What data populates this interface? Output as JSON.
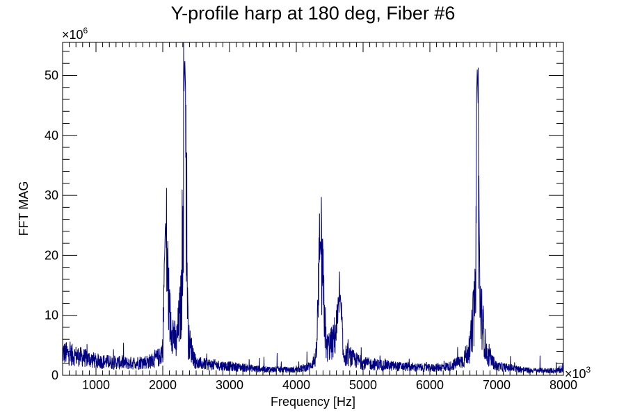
{
  "chart_data": {
    "type": "line",
    "title": "Y-profile harp at 180 deg, Fiber #6",
    "xlabel": "Frequency [Hz]",
    "ylabel": "FFT MAG",
    "x_multiplier_label": "×10",
    "x_multiplier_exp": "3",
    "y_multiplier_label": "×10",
    "y_multiplier_exp": "6",
    "xlim": [
      500,
      8000
    ],
    "ylim": [
      0,
      55.5
    ],
    "x_ticks": [
      1000,
      2000,
      3000,
      4000,
      5000,
      6000,
      7000,
      8000
    ],
    "x_tick_labels": [
      "1000",
      "2000",
      "3000",
      "4000",
      "5000",
      "6000",
      "7000",
      "8000"
    ],
    "y_ticks": [
      0,
      10,
      20,
      30,
      40,
      50
    ],
    "y_tick_labels": [
      "0",
      "10",
      "20",
      "30",
      "40",
      "50"
    ],
    "grid": false,
    "series": [
      {
        "color": "#000080",
        "noise_floor": 2.2,
        "peaks": [
          {
            "x": 2040,
            "y": 25.5
          },
          {
            "x": 2330,
            "y": 53.0
          },
          {
            "x": 4360,
            "y": 22.5
          },
          {
            "x": 4660,
            "y": 13.5
          },
          {
            "x": 6710,
            "y": 51.3
          }
        ],
        "x": [
          500,
          600,
          800,
          1000,
          1200,
          1500,
          1800,
          1950,
          2000,
          2040,
          2100,
          2200,
          2280,
          2330,
          2380,
          2500,
          3000,
          3500,
          4000,
          4200,
          4300,
          4360,
          4450,
          4550,
          4620,
          4660,
          4700,
          5000,
          5500,
          6000,
          6300,
          6500,
          6600,
          6680,
          6710,
          6750,
          6850,
          7000,
          7500,
          8000
        ],
        "y": [
          3.8,
          3.5,
          3.0,
          2.4,
          2.2,
          2.0,
          2.3,
          3.0,
          4.5,
          25.5,
          10.0,
          5.0,
          12.0,
          53.0,
          6.0,
          2.0,
          1.5,
          1.0,
          0.9,
          1.5,
          3.0,
          22.5,
          4.5,
          5.5,
          8.5,
          13.5,
          3.5,
          2.0,
          1.5,
          1.2,
          1.5,
          2.5,
          4.5,
          12.0,
          51.3,
          12.0,
          3.5,
          1.5,
          0.8,
          0.8
        ]
      }
    ]
  }
}
